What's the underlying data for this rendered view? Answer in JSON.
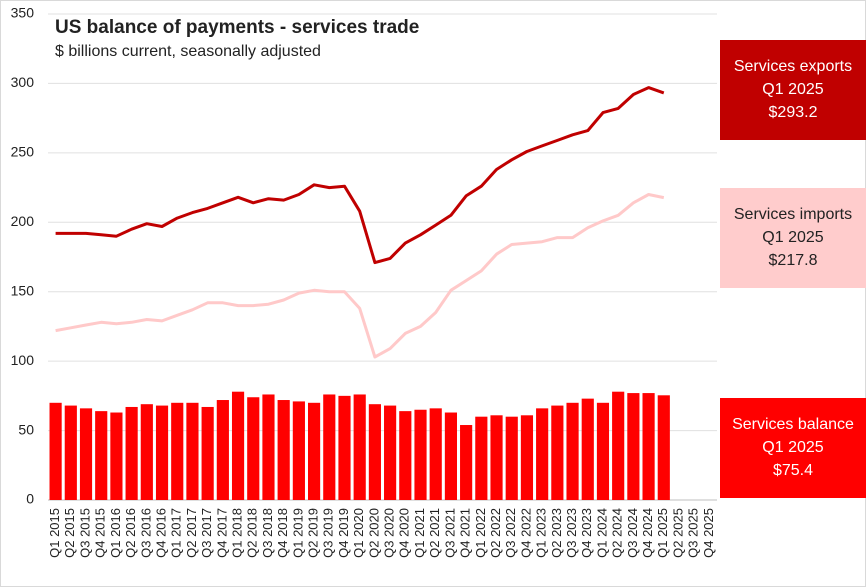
{
  "chart_data": {
    "type": "bar_line",
    "title": "US balance of payments - services trade",
    "subtitle": "$ billions current, seasonally adjusted",
    "categories": [
      "Q1 2015",
      "Q2 2015",
      "Q3 2015",
      "Q4 2015",
      "Q1 2016",
      "Q2 2016",
      "Q3 2016",
      "Q4 2016",
      "Q1 2017",
      "Q2 2017",
      "Q3 2017",
      "Q4 2017",
      "Q1 2018",
      "Q2 2018",
      "Q3 2018",
      "Q4 2018",
      "Q1 2019",
      "Q2 2019",
      "Q3 2019",
      "Q4 2019",
      "Q1 2020",
      "Q2 2020",
      "Q3 2020",
      "Q4 2020",
      "Q1 2021",
      "Q2 2021",
      "Q3 2021",
      "Q4 2021",
      "Q1 2022",
      "Q2 2022",
      "Q3 2022",
      "Q4 2022",
      "Q1 2023",
      "Q2 2023",
      "Q3 2023",
      "Q4 2023",
      "Q1 2024",
      "Q2 2024",
      "Q3 2024",
      "Q4 2024",
      "Q1 2025",
      "Q2 2025",
      "Q3 2025",
      "Q4 2025"
    ],
    "series": [
      {
        "name": "Services exports",
        "kind": "line",
        "color": "#c00000",
        "box_color": "#c00000",
        "box_text_color": "#ffffff",
        "label_period": "Q1 2025",
        "label_value": "$293.2",
        "values": [
          192,
          192,
          192,
          191,
          190,
          195,
          199,
          197,
          203,
          207,
          210,
          214,
          218,
          214,
          217,
          216,
          220,
          227,
          225,
          226,
          208,
          171,
          174,
          185,
          191,
          198,
          205,
          219,
          226,
          238,
          245,
          251,
          255,
          259,
          263,
          266,
          279,
          282,
          292,
          297,
          293.2,
          null,
          null,
          null
        ]
      },
      {
        "name": "Services imports",
        "kind": "line",
        "color": "#ffc9c9",
        "box_color": "#ffcccc",
        "box_text_color": "#222222",
        "label_period": "Q1 2025",
        "label_value": "$217.8",
        "values": [
          122,
          124,
          126,
          128,
          127,
          128,
          130,
          129,
          133,
          137,
          142,
          142,
          140,
          140,
          141,
          144,
          149,
          151,
          150,
          150,
          138,
          103,
          109,
          120,
          125,
          135,
          151,
          158,
          165,
          177,
          184,
          185,
          186,
          189,
          189,
          196,
          201,
          205,
          214,
          220,
          217.8,
          null,
          null,
          null
        ]
      },
      {
        "name": "Services balance",
        "kind": "bar",
        "color": "#ff0000",
        "box_color": "#ff0000",
        "box_text_color": "#ffffff",
        "label_period": "Q1 2025",
        "label_value": "$75.4",
        "values": [
          70,
          68,
          66,
          64,
          63,
          67,
          69,
          68,
          70,
          70,
          67,
          72,
          78,
          74,
          76,
          72,
          71,
          70,
          76,
          75,
          76,
          69,
          68,
          64,
          65,
          66,
          63,
          54,
          60,
          61,
          60,
          61,
          66,
          68,
          70,
          73,
          70,
          78,
          77,
          77,
          75.4,
          null,
          null,
          null
        ]
      }
    ],
    "ylim": [
      0,
      350
    ],
    "yticks": [
      0,
      50,
      100,
      150,
      200,
      250,
      300,
      350
    ],
    "grid": true
  }
}
